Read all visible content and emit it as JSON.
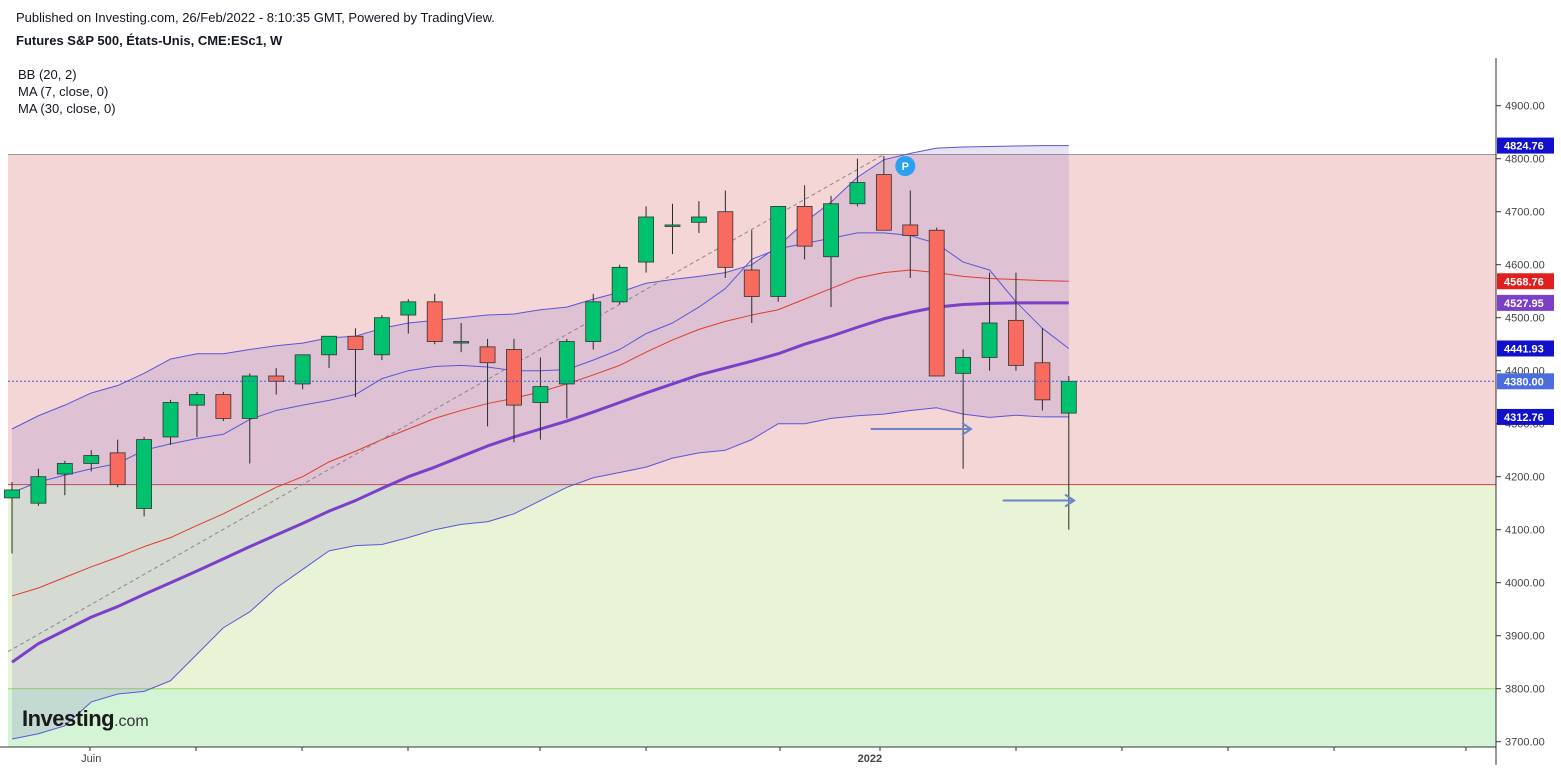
{
  "header": {
    "published": "Published on Investing.com, 26/Feb/2022 - 8:10:35 GMT, Powered by TradingView.",
    "symbol": "Futures S&P 500, États-Unis, CME:ESc1, W"
  },
  "indicators": [
    "BB (20, 2)",
    "MA (7, close, 0)",
    "MA (30, close, 0)"
  ],
  "logo": {
    "brand": "Investing",
    "suffix": ".com"
  },
  "colors": {
    "bull": "#00c26e",
    "bear": "#f96a5f",
    "wick": "#2b2b2b",
    "bb": "#5b56d6",
    "bb_fill": "rgba(120,100,200,0.18)",
    "ma7": "#e03c2f",
    "ma30": "#7b3fc8",
    "zone_red": "#f4d6d6",
    "zone_yellow": "#e9f4d6",
    "zone_green": "#d4f4d6",
    "price_line": "#3a5bd6"
  },
  "chart_data": {
    "type": "candlestick",
    "timeframe": "W",
    "ylim": [
      3690,
      4990
    ],
    "yticks": [
      "3700.00",
      "3800.00",
      "3900.00",
      "4000.00",
      "4100.00",
      "4200.00",
      "4300.00",
      "4400.00",
      "4500.00",
      "4600.00",
      "4700.00",
      "4800.00",
      "4900.00"
    ],
    "xlabels": [
      {
        "label": "Juin",
        "index": 3
      },
      {
        "label": "2022",
        "index": 33
      }
    ],
    "ohlc": [
      [
        4160,
        4190,
        4055,
        4175
      ],
      [
        4150,
        4215,
        4145,
        4200
      ],
      [
        4205,
        4230,
        4165,
        4225
      ],
      [
        4225,
        4250,
        4210,
        4240
      ],
      [
        4245,
        4270,
        4180,
        4185
      ],
      [
        4140,
        4275,
        4125,
        4270
      ],
      [
        4275,
        4345,
        4260,
        4340
      ],
      [
        4335,
        4360,
        4275,
        4355
      ],
      [
        4355,
        4360,
        4305,
        4310
      ],
      [
        4310,
        4395,
        4225,
        4390
      ],
      [
        4390,
        4405,
        4355,
        4380
      ],
      [
        4375,
        4430,
        4365,
        4430
      ],
      [
        4430,
        4455,
        4405,
        4465
      ],
      [
        4465,
        4480,
        4350,
        4440
      ],
      [
        4430,
        4505,
        4420,
        4500
      ],
      [
        4505,
        4535,
        4470,
        4530
      ],
      [
        4530,
        4545,
        4450,
        4455
      ],
      [
        4455,
        4490,
        4435,
        4455
      ],
      [
        4445,
        4460,
        4295,
        4415
      ],
      [
        4440,
        4460,
        4265,
        4335
      ],
      [
        4340,
        4425,
        4270,
        4370
      ],
      [
        4375,
        4460,
        4310,
        4455
      ],
      [
        4455,
        4545,
        4440,
        4530
      ],
      [
        4530,
        4600,
        4525,
        4595
      ],
      [
        4605,
        4710,
        4585,
        4690
      ],
      [
        4675,
        4715,
        4620,
        4675
      ],
      [
        4680,
        4720,
        4660,
        4690
      ],
      [
        4700,
        4740,
        4575,
        4595
      ],
      [
        4590,
        4665,
        4490,
        4540
      ],
      [
        4540,
        4710,
        4530,
        4710
      ],
      [
        4710,
        4750,
        4610,
        4635
      ],
      [
        4615,
        4730,
        4520,
        4715
      ],
      [
        4715,
        4800,
        4710,
        4755
      ],
      [
        4770,
        4805,
        4665,
        4665
      ],
      [
        4675,
        4740,
        4575,
        4655
      ],
      [
        4665,
        4670,
        4390,
        4390
      ],
      [
        4395,
        4440,
        4215,
        4425
      ],
      [
        4425,
        4585,
        4400,
        4490
      ],
      [
        4495,
        4585,
        4400,
        4410
      ],
      [
        4415,
        4480,
        4325,
        4345
      ],
      [
        4320,
        4390,
        4100,
        4380
      ]
    ],
    "bb_upper": [
      4290,
      4315,
      4335,
      4358,
      4372,
      4395,
      4422,
      4432,
      4432,
      4440,
      4447,
      4452,
      4462,
      4465,
      4480,
      4490,
      4495,
      4500,
      4505,
      4507,
      4515,
      4520,
      4535,
      4548,
      4565,
      4572,
      4578,
      4585,
      4600,
      4635,
      4680,
      4718,
      4765,
      4798,
      4810,
      4820,
      4822,
      4823,
      4824,
      4824.76,
      4824.76
    ],
    "bb_middle": [
      4170,
      4190,
      4203,
      4215,
      4225,
      4250,
      4262,
      4272,
      4280,
      4308,
      4325,
      4335,
      4344,
      4355,
      4385,
      4400,
      4408,
      4410,
      4407,
      4400,
      4400,
      4402,
      4420,
      4440,
      4470,
      4490,
      4520,
      4555,
      4610,
      4630,
      4640,
      4650,
      4660,
      4660,
      4655,
      4640,
      4605,
      4590,
      4530,
      4480,
      4441.93
    ],
    "bb_lower": [
      3705,
      3715,
      3730,
      3775,
      3790,
      3795,
      3815,
      3865,
      3915,
      3945,
      3990,
      4025,
      4060,
      4070,
      4072,
      4085,
      4100,
      4110,
      4115,
      4130,
      4155,
      4180,
      4198,
      4208,
      4218,
      4235,
      4245,
      4250,
      4270,
      4300,
      4300,
      4310,
      4315,
      4318,
      4325,
      4330,
      4318,
      4312,
      4316,
      4312.76,
      4312.76
    ],
    "ma7": [
      3975,
      3990,
      4010,
      4030,
      4048,
      4068,
      4085,
      4108,
      4130,
      4155,
      4180,
      4200,
      4228,
      4248,
      4270,
      4290,
      4310,
      4325,
      4338,
      4348,
      4360,
      4375,
      4392,
      4410,
      4435,
      4458,
      4478,
      4493,
      4505,
      4515,
      4535,
      4555,
      4575,
      4585,
      4590,
      4585,
      4578,
      4574,
      4572,
      4570,
      4568.76
    ],
    "ma30": [
      3850,
      3885,
      3910,
      3935,
      3955,
      3978,
      4000,
      4022,
      4045,
      4068,
      4090,
      4112,
      4135,
      4155,
      4178,
      4200,
      4218,
      4238,
      4258,
      4275,
      4290,
      4305,
      4322,
      4340,
      4358,
      4375,
      4392,
      4405,
      4418,
      4432,
      4450,
      4465,
      4482,
      4498,
      4510,
      4520,
      4525,
      4527,
      4527.95,
      4527.95,
      4527.95
    ],
    "current_price": 4380.0,
    "zones": [
      {
        "from": 4185,
        "to": 4808,
        "color": "red"
      },
      {
        "from": 3800,
        "to": 4185,
        "color": "yellow"
      },
      {
        "from": 3690,
        "to": 3800,
        "color": "green"
      }
    ],
    "horizontal_lines": [
      4808,
      4185,
      3800
    ],
    "price_labels": [
      {
        "value": 4824.76,
        "text": "4824.76",
        "color": "#1111cc"
      },
      {
        "value": 4568.76,
        "text": "4568.76",
        "color": "#e0201f"
      },
      {
        "value": 4527.95,
        "text": "4527.95",
        "color": "#7b3fc8"
      },
      {
        "value": 4441.93,
        "text": "4441.93",
        "color": "#1111cc"
      },
      {
        "value": 4380.0,
        "text": "4380.00",
        "color": "#4a6ee0"
      },
      {
        "value": 4312.76,
        "text": "4312.76",
        "color": "#1111cc"
      }
    ],
    "annotations": [
      {
        "type": "trendline",
        "from": [
          0,
          3870
        ],
        "to": [
          33,
          4808
        ],
        "style": "dashed"
      },
      {
        "type": "arrow",
        "from": [
          32.5,
          4290
        ],
        "to": [
          36.3,
          4290
        ]
      },
      {
        "type": "arrow",
        "from": [
          37.5,
          4155
        ],
        "to": [
          40.2,
          4155
        ]
      },
      {
        "type": "marker",
        "label": "P",
        "index": 34,
        "value": 4790
      }
    ]
  }
}
